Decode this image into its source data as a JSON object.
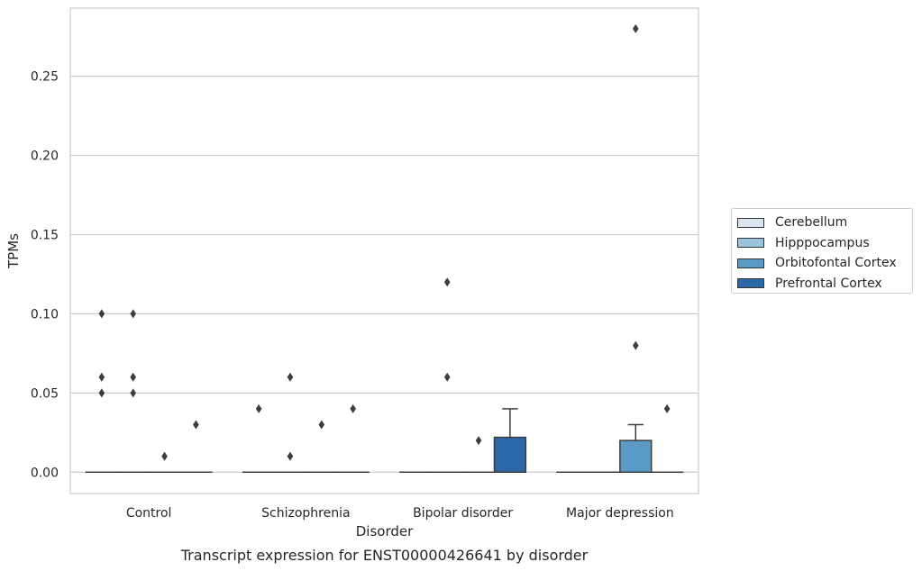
{
  "chart_data": {
    "type": "box",
    "caption": "Transcript expression for ENST00000426641 by disorder",
    "xlabel": "Disorder",
    "ylabel": "TPMs",
    "ylim": [
      -0.0135,
      0.293
    ],
    "yticks": [
      "0.00",
      "0.05",
      "0.10",
      "0.15",
      "0.20",
      "0.25"
    ],
    "ytick_values": [
      0,
      0.05,
      0.1,
      0.15,
      0.2,
      0.25
    ],
    "grid": "horizontal",
    "legend_position": "right",
    "categories": [
      "Control",
      "Schizophrenia",
      "Bipolar disorder",
      "Major depression"
    ],
    "series": [
      {
        "name": "Cerebellum",
        "color": "#d9e6f2",
        "boxes": [
          {
            "q1": 0,
            "median": 0,
            "q3": 0,
            "whisker_low": 0,
            "whisker_high": 0,
            "outliers": [
              0.1,
              0.06,
              0.05
            ]
          },
          {
            "q1": 0,
            "median": 0,
            "q3": 0,
            "whisker_low": 0,
            "whisker_high": 0,
            "outliers": [
              0.04
            ]
          },
          {
            "q1": 0,
            "median": 0,
            "q3": 0,
            "whisker_low": 0,
            "whisker_high": 0,
            "outliers": []
          },
          {
            "q1": 0,
            "median": 0,
            "q3": 0,
            "whisker_low": 0,
            "whisker_high": 0,
            "outliers": []
          }
        ]
      },
      {
        "name": "Hipppocampus",
        "color": "#9ac3dd",
        "boxes": [
          {
            "q1": 0,
            "median": 0,
            "q3": 0,
            "whisker_low": 0,
            "whisker_high": 0,
            "outliers": [
              0.1,
              0.06,
              0.05
            ]
          },
          {
            "q1": 0,
            "median": 0,
            "q3": 0,
            "whisker_low": 0,
            "whisker_high": 0,
            "outliers": [
              0.06,
              0.01
            ]
          },
          {
            "q1": 0,
            "median": 0,
            "q3": 0,
            "whisker_low": 0,
            "whisker_high": 0,
            "outliers": [
              0.12,
              0.06
            ]
          },
          {
            "q1": 0,
            "median": 0,
            "q3": 0,
            "whisker_low": 0,
            "whisker_high": 0,
            "outliers": []
          }
        ]
      },
      {
        "name": "Orbitofontal Cortex",
        "color": "#5a9ac6",
        "boxes": [
          {
            "q1": 0,
            "median": 0,
            "q3": 0,
            "whisker_low": 0,
            "whisker_high": 0,
            "outliers": [
              0.01
            ]
          },
          {
            "q1": 0,
            "median": 0,
            "q3": 0,
            "whisker_low": 0,
            "whisker_high": 0,
            "outliers": [
              0.03
            ]
          },
          {
            "q1": 0,
            "median": 0,
            "q3": 0,
            "whisker_low": 0,
            "whisker_high": 0,
            "outliers": [
              0.02
            ]
          },
          {
            "q1": 0,
            "median": 0,
            "q3": 0.02,
            "whisker_low": 0,
            "whisker_high": 0.03,
            "outliers": [
              0.28,
              0.08
            ]
          }
        ]
      },
      {
        "name": "Prefrontal Cortex",
        "color": "#2c68a8",
        "boxes": [
          {
            "q1": 0,
            "median": 0,
            "q3": 0,
            "whisker_low": 0,
            "whisker_high": 0,
            "outliers": [
              0.03
            ]
          },
          {
            "q1": 0,
            "median": 0,
            "q3": 0,
            "whisker_low": 0,
            "whisker_high": 0,
            "outliers": [
              0.04
            ]
          },
          {
            "q1": 0,
            "median": 0,
            "q3": 0.022,
            "whisker_low": 0,
            "whisker_high": 0.04,
            "outliers": []
          },
          {
            "q1": 0,
            "median": 0,
            "q3": 0,
            "whisker_low": 0,
            "whisker_high": 0,
            "outliers": [
              0.04
            ]
          }
        ]
      }
    ]
  }
}
